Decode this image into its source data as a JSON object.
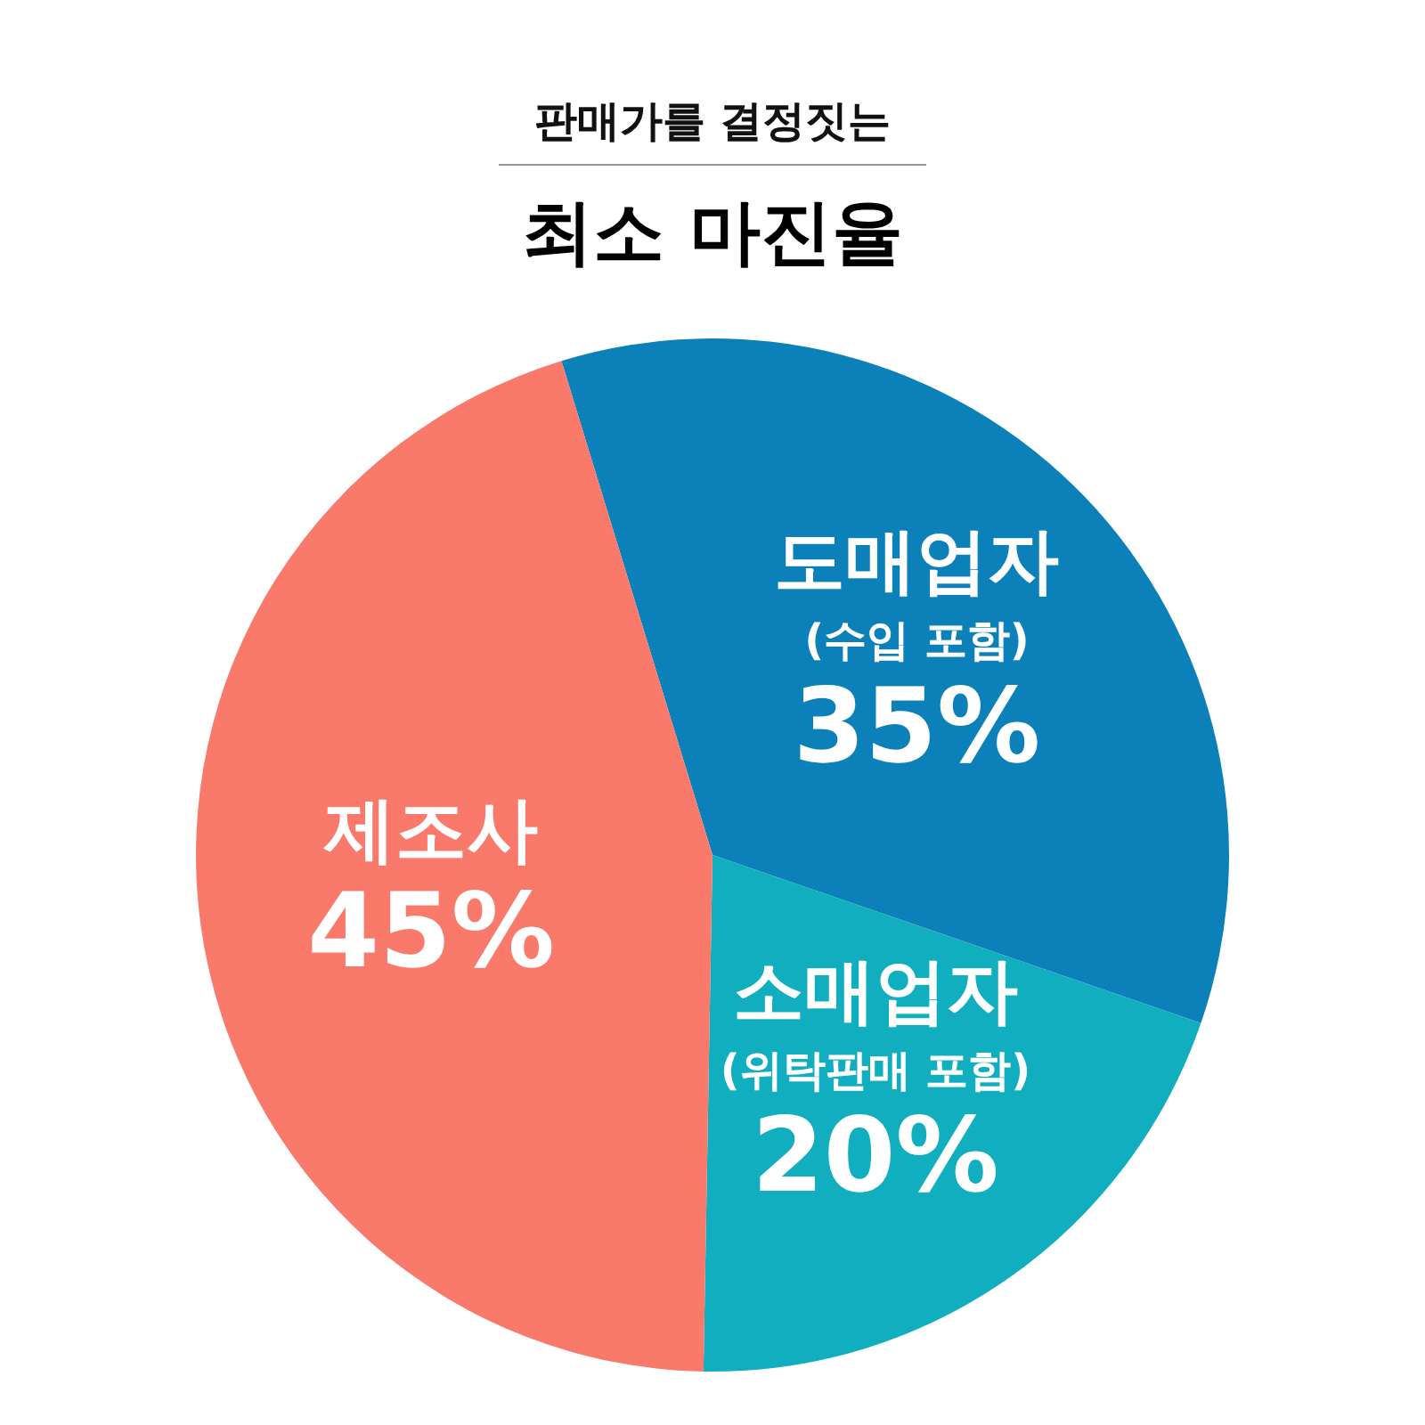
{
  "chart_data": {
    "type": "pie",
    "subtitle": "판매가를 결정짓는",
    "title": "최소 마진율",
    "categories": [
      "도매업자\n(수입 포함)",
      "소매업자\n(위탁판매 포함)",
      "제조사"
    ],
    "values": [
      35,
      20,
      45
    ],
    "value_labels": [
      "35%",
      "20%",
      "45%"
    ],
    "colors": [
      "#0b80b9",
      "#10aebe",
      "#f97a6b"
    ],
    "legend": false
  }
}
